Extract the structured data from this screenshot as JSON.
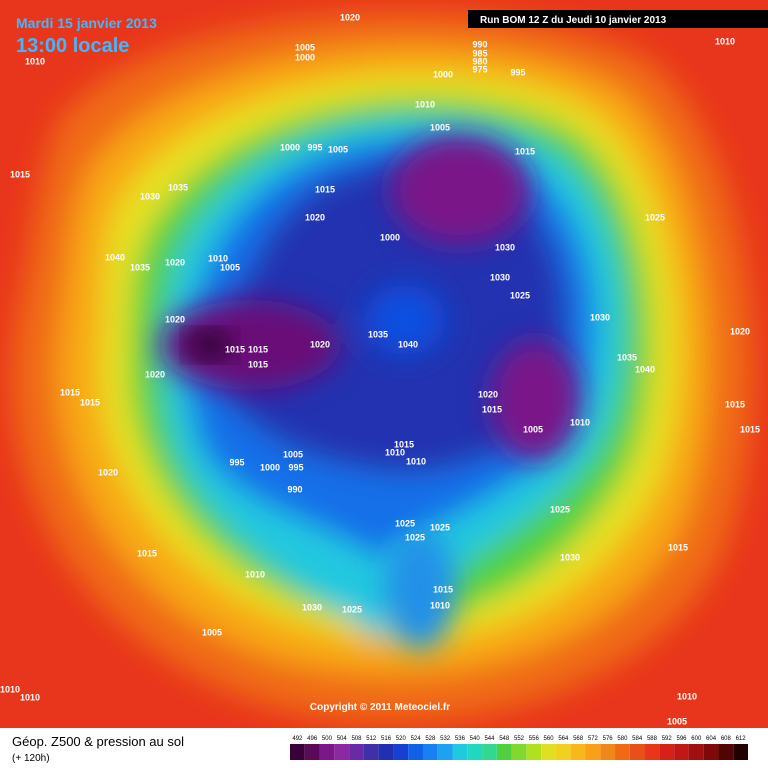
{
  "header": {
    "date": "Mardi 15 janvier 2013",
    "time": "13:00 locale",
    "run": "Run BOM 12 Z du Jeudi 10 janvier 2013"
  },
  "footer": {
    "copyright": "Copyright © 2011 Meteociel.fr",
    "title": "Géop. Z500 & pression au sol",
    "subtitle": "(+ 120h)"
  },
  "pressure_labels": [
    1020,
    1010,
    1005,
    1000,
    990,
    985,
    980,
    975,
    1000,
    995,
    1010,
    1010,
    1005,
    1000,
    995,
    1005,
    1015,
    1015,
    1035,
    1030,
    1015,
    1025,
    1020,
    1000,
    1030,
    1040,
    1035,
    1020,
    1010,
    1005,
    1030,
    1025,
    1020,
    1030,
    1020,
    1035,
    1040,
    1020,
    1015,
    1015,
    1015,
    1035,
    1040,
    1020,
    1015,
    1015,
    1020,
    1015,
    1015,
    1010,
    1005,
    1015,
    1010,
    1010,
    1015,
    1005,
    995,
    1000,
    995,
    990,
    1020,
    1025,
    1025,
    1025,
    1025,
    1030,
    1015,
    1015,
    1010,
    1015,
    1010,
    1030,
    1025,
    1005,
    1010,
    1010,
    1010,
    1005
  ],
  "legend": {
    "ticks": [
      492,
      496,
      500,
      504,
      508,
      512,
      516,
      520,
      524,
      528,
      532,
      536,
      540,
      544,
      548,
      552,
      556,
      560,
      564,
      568,
      572,
      576,
      580,
      584,
      588,
      592,
      596,
      600,
      604,
      608,
      612
    ],
    "colors": [
      "#3a003a",
      "#5a0a5a",
      "#7a1888",
      "#8a2aa0",
      "#6a2aa8",
      "#4030a8",
      "#2030b0",
      "#1840d0",
      "#1060e8",
      "#1880f0",
      "#20a0f0",
      "#20c8e0",
      "#20d8c0",
      "#30d890",
      "#50d040",
      "#80d830",
      "#b0e020",
      "#e0e020",
      "#f0d020",
      "#f8b818",
      "#f8a018",
      "#f08818",
      "#f06a16",
      "#e85018",
      "#e8361c",
      "#d82018",
      "#c01818",
      "#a01010",
      "#800808",
      "#500404",
      "#200000"
    ]
  }
}
